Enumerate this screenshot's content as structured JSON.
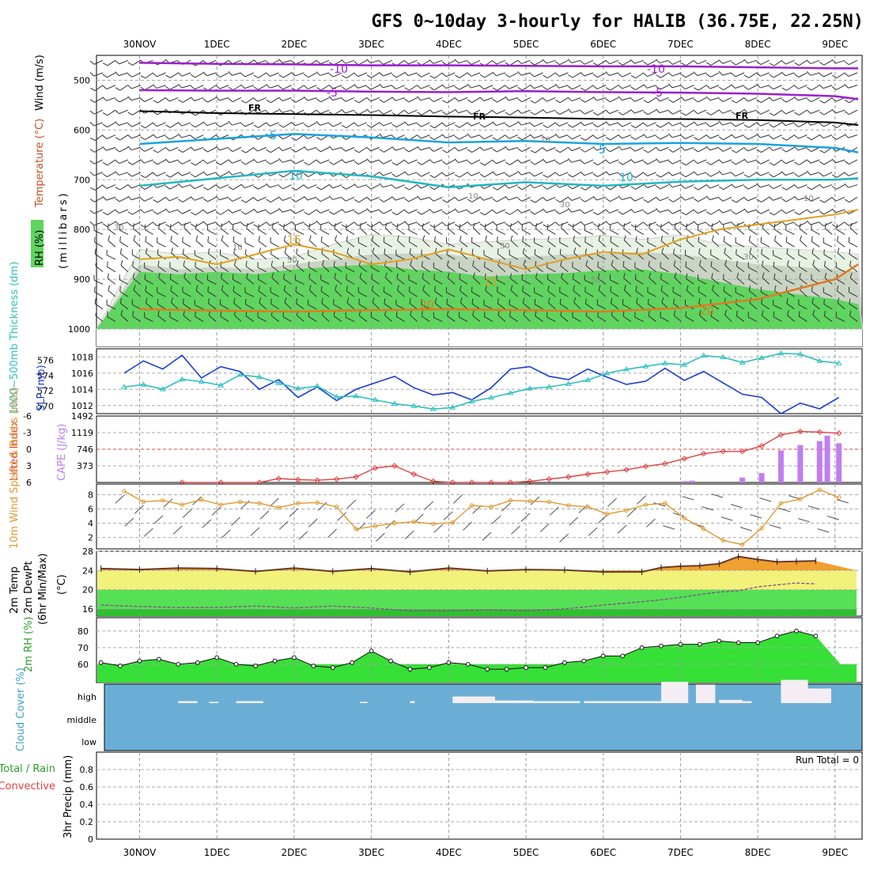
{
  "title": "GFS 0~10day 3-hourly for HALIB (36.75E, 22.25N)",
  "days": [
    "30NOV",
    "1DEC",
    "2DEC",
    "3DEC",
    "4DEC",
    "5DEC",
    "6DEC",
    "7DEC",
    "8DEC",
    "9DEC"
  ],
  "colors": {
    "temp_minus10": "#9a1fd0",
    "temp_minus5": "#9a1fd0",
    "freezing": "#000000",
    "temp_5": "#1aa3e0",
    "temp_10": "#22b8c0",
    "temp_15": "#e0a020",
    "temp_20": "#e07a20",
    "rh_light": "#e8f2e4",
    "rh_mid": "#c9d4c4",
    "rh_high": "#5fd45f",
    "slp": "#1a3dd6",
    "thickness": "#2fbfc0",
    "lifted": "#e04040",
    "cape": "#c07ef0",
    "wind": "#e09a30",
    "temp2m": "#6b3a2a",
    "dewpt": "#8a4a8a",
    "rh2m_fill": "#36e036",
    "cloud": "#6aaed6",
    "cloud_gap": "#f4eef4"
  },
  "chart_data": [
    {
      "type": "contour",
      "id": "upper-air",
      "title": "Temperature (°C) / Wind (m/s) / RH (%)",
      "ylabel": "millibars",
      "ylabel_parts": {
        "rh": "RH (%)",
        "temperature": "Temperature (°C)",
        "wind": "Wind (m/s)",
        "units": "(millibars)"
      },
      "y_ticks": [
        500,
        600,
        700,
        800,
        900,
        1000
      ],
      "ylim": [
        450,
        1035
      ],
      "x_days": [
        0,
        10
      ],
      "isotherms": [
        {
          "label": "-10",
          "color": "#9a1fd0",
          "x": [
            0,
            1,
            2,
            3,
            4,
            5,
            6,
            7,
            8,
            9,
            9.3
          ],
          "p": [
            465,
            467,
            468,
            470,
            470,
            471,
            472,
            472,
            474,
            476,
            476
          ]
        },
        {
          "label": "-5",
          "color": "#9a1fd0",
          "x": [
            0,
            1,
            2,
            3,
            4,
            5,
            6,
            7,
            8,
            9,
            9.3
          ],
          "p": [
            520,
            521,
            521,
            523,
            524,
            522,
            524,
            525,
            527,
            532,
            538
          ]
        },
        {
          "label": "FR",
          "color": "#000000",
          "x": [
            0,
            1,
            2,
            3,
            4,
            5,
            6,
            7,
            8,
            9,
            9.3
          ],
          "p": [
            562,
            566,
            568,
            570,
            573,
            575,
            578,
            578,
            580,
            585,
            590
          ]
        },
        {
          "label": "5",
          "color": "#1aa3e0",
          "x": [
            0,
            1,
            2,
            3,
            4,
            5,
            6,
            7,
            8,
            9,
            9.3
          ],
          "p": [
            628,
            618,
            608,
            615,
            625,
            622,
            628,
            626,
            628,
            636,
            645
          ]
        },
        {
          "label": "10",
          "color": "#22b8c0",
          "x": [
            0,
            1,
            2,
            3,
            4,
            5,
            6,
            7,
            8,
            9,
            9.3
          ],
          "p": [
            712,
            697,
            682,
            693,
            715,
            705,
            712,
            704,
            700,
            700,
            697
          ]
        },
        {
          "label": "20",
          "color": "#e07a20",
          "x": [
            0,
            1,
            2,
            3,
            4,
            5,
            6,
            7,
            8,
            9,
            9.3
          ],
          "p": [
            960,
            963,
            965,
            962,
            960,
            962,
            965,
            958,
            940,
            900,
            870
          ]
        }
      ],
      "isotherm_15": {
        "label": "15",
        "color": "#e0a020",
        "x": [
          0,
          0.5,
          1,
          1.5,
          2,
          2.5,
          3,
          3.5,
          4,
          4.5,
          5,
          5.5,
          6,
          6.5,
          7,
          7.5,
          8,
          8.5,
          9,
          9.3
        ],
        "p": [
          860,
          855,
          870,
          850,
          830,
          845,
          870,
          860,
          840,
          860,
          880,
          860,
          845,
          850,
          820,
          800,
          790,
          780,
          770,
          760
        ]
      },
      "rh_layers": [
        {
          "level": "30-50",
          "top_p": [
            840,
            850,
            845,
            860,
            855,
            830,
            810,
            815,
            830,
            825,
            820,
            818,
            812,
            820,
            810,
            830,
            835,
            840,
            845,
            850
          ]
        },
        {
          "level": "50-70",
          "top_p": [
            870,
            880,
            875,
            880,
            870,
            860,
            850,
            848,
            850,
            860,
            855,
            850,
            848,
            845,
            850,
            860,
            870,
            875,
            880,
            885
          ]
        },
        {
          "level": "70+",
          "top_p": [
            885,
            890,
            885,
            890,
            880,
            875,
            870,
            880,
            885,
            895,
            890,
            888,
            882,
            880,
            890,
            905,
            920,
            930,
            940,
            950
          ]
        }
      ],
      "rh_x": [
        0,
        0.5,
        1,
        1.5,
        2,
        2.5,
        3,
        3.5,
        4,
        4.5,
        5,
        5.5,
        6,
        6.5,
        7,
        7.5,
        8,
        8.5,
        9,
        9.3
      ],
      "rh_contour_labels": [
        "30",
        "10",
        "10",
        "30",
        "50",
        "10",
        "30",
        "50",
        "30",
        "10"
      ],
      "contour_labels": [
        "-10",
        "-10",
        "-5",
        "-5",
        "FR",
        "FR",
        "FR",
        "5",
        "5",
        "10",
        "10",
        "15",
        "15",
        "20",
        "20"
      ]
    },
    {
      "type": "line",
      "id": "slp-thickness",
      "title": "1000-500mb Thickness (dm) / SLP (mb)",
      "ylabel_left": "1000~500mb Thickness (dm)",
      "ylabel_right": "SLP (mb)",
      "x": [
        0,
        0.25,
        0.5,
        0.75,
        1,
        1.25,
        1.5,
        1.75,
        2,
        2.25,
        2.5,
        2.75,
        3,
        3.25,
        3.5,
        3.75,
        4,
        4.25,
        4.5,
        4.75,
        5,
        5.25,
        5.5,
        5.75,
        6,
        6.25,
        6.5,
        6.75,
        7,
        7.25,
        7.5,
        7.75,
        8,
        8.25,
        8.5,
        8.75,
        9,
        9.25
      ],
      "series": [
        {
          "name": "SLP (mb)",
          "color": "#1a3dd6",
          "axis": "right",
          "values": [
            1016,
            1017.5,
            1016.5,
            1018.2,
            1015.4,
            1016.8,
            1016.2,
            1014.0,
            1015.2,
            1013.0,
            1014.3,
            1012.6,
            1014.0,
            1014.8,
            1015.6,
            1014.2,
            1013.3,
            1013.6,
            1012.7,
            1014.2,
            1016.5,
            1016.8,
            1015.6,
            1015.2,
            1016.5,
            1015.5,
            1014.6,
            1015.0,
            1016.6,
            1015.1,
            1016.2,
            1014.8,
            1013.4,
            1013.0,
            1011.0,
            1012.3,
            1011.6,
            1013.0
          ]
        },
        {
          "name": "Thickness (dm)",
          "color": "#2fbfc0",
          "axis": "left",
          "marker": "triangle",
          "values": [
            572.5,
            572.8,
            572.2,
            573.5,
            573.2,
            572.7,
            574.1,
            573.8,
            573.0,
            572.3,
            572.6,
            571.2,
            571.3,
            570.8,
            570.3,
            570.0,
            569.6,
            569.8,
            570.6,
            571.1,
            571.7,
            572.3,
            572.5,
            572.9,
            573.4,
            574.3,
            574.8,
            575.2,
            575.6,
            575.4,
            576.6,
            576.4,
            575.7,
            576.3,
            576.9,
            576.8,
            575.9,
            575.6
          ]
        }
      ],
      "y_left_ticks": [
        570,
        572,
        574,
        576
      ],
      "y_right_ticks": [
        1012,
        1014,
        1016,
        1018
      ],
      "ylim_left": [
        569,
        577.5
      ],
      "ylim_right": [
        1011,
        1019
      ]
    },
    {
      "type": "bar",
      "id": "cape-lifted",
      "title": "Lifted Index / CAPE (J/kg)",
      "ylabel_left": "Lifted Index",
      "ylabel_right": "CAPE (J/kg)",
      "x": [
        0.75,
        1.25,
        1.75,
        2.0,
        2.25,
        2.5,
        2.75,
        3.0,
        3.25,
        3.5,
        3.75,
        4.0,
        4.25,
        4.5,
        4.75,
        5.0,
        5.25,
        5.5,
        5.75,
        6.0,
        6.25,
        6.5,
        6.75,
        7.0,
        7.25,
        7.5,
        7.75,
        8.0,
        8.25,
        8.5,
        8.75,
        9.0,
        9.25
      ],
      "series": [
        {
          "name": "Lifted Index",
          "color": "#e04040",
          "axis": "left",
          "values": [
            6,
            6,
            6,
            5.3,
            5.5,
            5.6,
            5.4,
            5.0,
            3.4,
            3.0,
            4.5,
            5.8,
            6,
            6,
            6,
            6,
            5.8,
            5.4,
            5.0,
            4.5,
            4.1,
            3.7,
            3.1,
            2.6,
            1.7,
            0.8,
            0.4,
            0.4,
            -0.6,
            -2.6,
            -3.2,
            -3.1,
            -2.9
          ]
        },
        {
          "name": "CAPE (J/kg)",
          "color": "#c07ef0",
          "axis": "right",
          "bar_x": [
            7.25,
            7.35,
            7.75,
            8.0,
            8.25,
            8.5,
            8.75,
            9.0,
            9.1,
            9.25
          ],
          "bar_values": [
            30,
            40,
            0,
            110,
            210,
            720,
            840,
            930,
            1050,
            880
          ]
        }
      ],
      "y_left_ticks": [
        6,
        3,
        0,
        -3,
        -6
      ],
      "y_right_ticks": [
        373,
        746,
        1119,
        1492
      ],
      "ylim_left": [
        6,
        -6
      ],
      "ylim_right": [
        0,
        1492
      ],
      "zero_line_color": "#e04040"
    },
    {
      "type": "line",
      "id": "wind10m",
      "title": "10m Wind Speed (m/s) & Barbs",
      "ylabel": "10m Wind Speed & Barbs (m/s)",
      "x": [
        0,
        0.25,
        0.5,
        0.75,
        1,
        1.25,
        1.5,
        1.75,
        2,
        2.25,
        2.5,
        2.75,
        3,
        3.25,
        3.5,
        3.75,
        4,
        4.25,
        4.5,
        4.75,
        5,
        5.25,
        5.5,
        5.75,
        6,
        6.25,
        6.5,
        6.75,
        7,
        7.25,
        7.5,
        7.75,
        8,
        8.25,
        8.5,
        8.75,
        9,
        9.25
      ],
      "values": [
        8.5,
        7.0,
        7.2,
        6.6,
        7.3,
        6.6,
        7.0,
        6.8,
        6.2,
        6.8,
        6.9,
        6.3,
        3.2,
        3.6,
        4.0,
        4.2,
        3.9,
        4.1,
        6.5,
        6.3,
        7.2,
        7.1,
        7.0,
        6.5,
        6.3,
        5.3,
        5.8,
        6.6,
        6.8,
        4.7,
        3.2,
        1.6,
        1.0,
        3.3,
        6.8,
        7.4,
        8.7,
        7.6
      ],
      "y_ticks": [
        2,
        4,
        6,
        8
      ],
      "ylim": [
        0.4,
        9.5
      ],
      "color": "#e09a30"
    },
    {
      "type": "area",
      "id": "temp2m",
      "title": "2m Temp / 2m DewPt (6hr Min/Max) (°C)",
      "ylabel_parts": {
        "temp": "2m Temp",
        "dewpt": "2m DewPt",
        "minmax": "(6hr Min/Max)",
        "units": "(°C)"
      },
      "x": [
        0,
        0.5,
        1,
        1.5,
        2,
        2.5,
        3,
        3.5,
        4,
        4.5,
        5,
        5.5,
        6,
        6.5,
        7,
        7.25,
        7.5,
        7.75,
        8,
        8.25,
        8.5,
        8.75,
        9,
        9.25
      ],
      "series": [
        {
          "name": "2m Temp",
          "color": "#6b3a2a",
          "values": [
            24.4,
            24.2,
            24.5,
            24.4,
            23.8,
            24.5,
            23.8,
            24.4,
            23.7,
            24.5,
            23.9,
            24.2,
            24.1,
            23.7,
            23.7,
            24.6,
            24.9,
            25.0,
            25.4,
            26.9,
            26.3,
            25.8,
            25.9,
            26.0
          ]
        },
        {
          "name": "2m DewPt",
          "color": "#8a4a8a",
          "values": [
            16.8,
            16.5,
            16.3,
            16.3,
            16.6,
            16.2,
            16.6,
            16.2,
            15.6,
            15.6,
            15.8,
            15.6,
            16.0,
            16.8,
            17.5,
            17.9,
            18.4,
            19.0,
            19.5,
            19.8,
            20.6,
            21.0,
            21.4,
            21.2
          ]
        }
      ],
      "y_ticks": [
        16,
        20,
        24,
        28
      ],
      "ylim": [
        14.5,
        28
      ]
    },
    {
      "type": "area",
      "id": "rh2m",
      "title": "2m RH (%)",
      "ylabel": "2m RH (%)",
      "x": [
        0,
        0.25,
        0.5,
        0.75,
        1,
        1.25,
        1.5,
        1.75,
        2,
        2.25,
        2.5,
        2.75,
        3,
        3.25,
        3.5,
        3.75,
        4,
        4.25,
        4.5,
        4.75,
        5,
        5.25,
        5.5,
        5.75,
        6,
        6.25,
        6.5,
        6.75,
        7,
        7.25,
        7.5,
        7.75,
        8,
        8.25,
        8.5,
        8.75,
        9,
        9.25
      ],
      "values": [
        61,
        59,
        62,
        63,
        60,
        61,
        64,
        60,
        59,
        62,
        64,
        59,
        58,
        61,
        68,
        62,
        57,
        58,
        61,
        60,
        57,
        57,
        58,
        58,
        61,
        62,
        65,
        65,
        70,
        71,
        72,
        72,
        74,
        73,
        73,
        77,
        80,
        77
      ],
      "y_ticks": [
        60,
        70,
        80
      ],
      "ylim": [
        49,
        88
      ],
      "color": "#36e036"
    },
    {
      "type": "area",
      "id": "cloud",
      "title": "Cloud Cover (%)",
      "ylabel": "Cloud Cover (%)",
      "y_ticks": [
        "high",
        "middle",
        "low"
      ],
      "gap_x": [
        1.0,
        1.4,
        1.75,
        3.35,
        4.0,
        4.55,
        5.05,
        5.35,
        5.6,
        6.25,
        6.6,
        7.0,
        7.25,
        7.7,
        8.0,
        8.3,
        8.8,
        9.15
      ],
      "gap_w": [
        0.25,
        0.12,
        0.35,
        0.1,
        0.06,
        0.55,
        0.3,
        0.25,
        0.6,
        0.35,
        0.4,
        0.25,
        0.35,
        0.25,
        0.3,
        0.12,
        0.35,
        0.3
      ],
      "gap_h": [
        0.03,
        0.02,
        0.03,
        0.02,
        0.03,
        0.1,
        0.04,
        0.04,
        0.03,
        0.03,
        0.03,
        0.03,
        0.32,
        0.28,
        0.05,
        0.03,
        0.35,
        0.22
      ],
      "color": "#6aaed6"
    },
    {
      "type": "bar",
      "id": "precip",
      "title": "3hr Precip (mm) Total / Rain / Convective",
      "ylabel": "3hr Precip (mm)",
      "legend": [
        "Total / Rain",
        "Convective"
      ],
      "values": [],
      "y_ticks": [
        0,
        0.2,
        0.4,
        0.6,
        0.8
      ],
      "ylim": [
        0,
        1
      ],
      "run_total": "Run Total = 0"
    }
  ]
}
